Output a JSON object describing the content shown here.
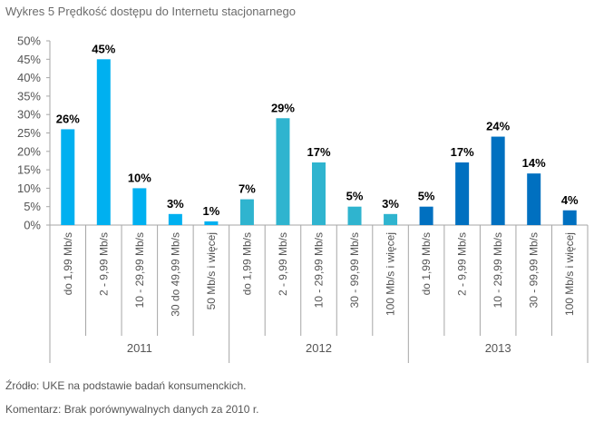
{
  "title": "Wykres 5 Prędkość dostępu do Internetu stacjonarnego",
  "source": "Źródło: UKE na podstawie badań konsumenckich.",
  "comment": "Komentarz: Brak porównywalnych danych za 2010 r.",
  "chart_data": {
    "type": "bar",
    "title": "Wykres 5 Prędkość dostępu do Internetu stacjonarnego",
    "xlabel": "",
    "ylabel": "",
    "ylim": [
      0,
      50
    ],
    "yticks": [
      "0%",
      "5%",
      "10%",
      "15%",
      "20%",
      "25%",
      "30%",
      "35%",
      "40%",
      "45%",
      "50%"
    ],
    "grid": false,
    "groups": [
      {
        "name": "2011",
        "color": "#00b0f0",
        "categories": [
          "do 1,99 Mb/s",
          "2 - 9,99 Mb/s",
          "10 - 29,99 Mb/s",
          "30 do 49,99 Mb/s",
          "50 Mb/s i więcej"
        ],
        "values": [
          26,
          45,
          10,
          3,
          1
        ],
        "labels": [
          "26%",
          "45%",
          "10%",
          "3%",
          "1%"
        ]
      },
      {
        "name": "2012",
        "color": "#2fb4cf",
        "categories": [
          "do 1,99 Mb/s",
          "2 - 9,99 Mb/s",
          "10 - 29,99 Mb/s",
          "30 - 99,99 Mb/s",
          "100 Mb/s i więcej"
        ],
        "values": [
          7,
          29,
          17,
          5,
          3
        ],
        "labels": [
          "7%",
          "29%",
          "17%",
          "5%",
          "3%"
        ]
      },
      {
        "name": "2013",
        "color": "#0070c0",
        "categories": [
          "do 1,99 Mb/s",
          "2 - 9,99 Mb/s",
          "10 - 29,99 Mb/s",
          "30 - 99,99 Mb/s",
          "100 Mb/s i więcej"
        ],
        "values": [
          5,
          17,
          24,
          14,
          4
        ],
        "labels": [
          "5%",
          "17%",
          "24%",
          "14%",
          "4%"
        ]
      }
    ]
  }
}
